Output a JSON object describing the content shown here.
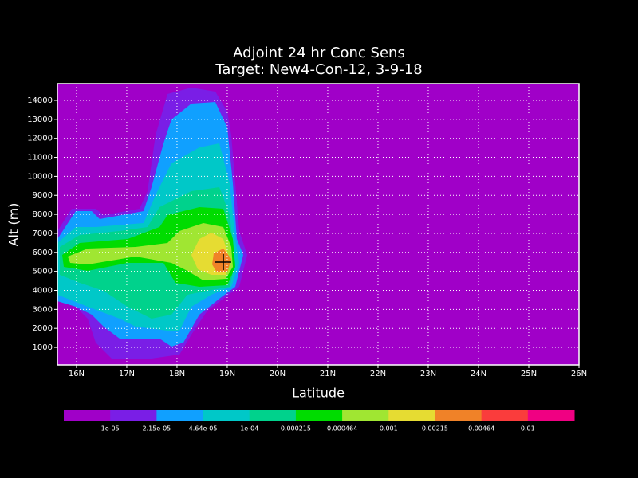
{
  "chart_data": {
    "type": "contour",
    "title": "Adjoint 24 hr Conc Sens",
    "subtitle": "Target: New4-Con-12, 3-9-18",
    "xlabel": "Latitude",
    "ylabel": "Alt (m)",
    "xlim": [
      15.62,
      26
    ],
    "xticks": [
      {
        "value": 16,
        "label": "16N"
      },
      {
        "value": 17,
        "label": "17N"
      },
      {
        "value": 18,
        "label": "18N"
      },
      {
        "value": 19,
        "label": "19N"
      },
      {
        "value": 20,
        "label": "20N"
      },
      {
        "value": 21,
        "label": "21N"
      },
      {
        "value": 22,
        "label": "22N"
      },
      {
        "value": 23,
        "label": "23N"
      },
      {
        "value": 24,
        "label": "24N"
      },
      {
        "value": 25,
        "label": "25N"
      },
      {
        "value": 26,
        "label": "26N"
      }
    ],
    "ylim": [
      80,
      14880
    ],
    "yticks": [
      1000,
      2000,
      3000,
      4000,
      5000,
      6000,
      7000,
      8000,
      9000,
      10000,
      11000,
      12000,
      13000,
      14000
    ],
    "grid": true,
    "levels": [
      {
        "value": 1e-05,
        "label": "1e-05"
      },
      {
        "value": 2.15e-05,
        "label": "2.15e-05"
      },
      {
        "value": 4.64e-05,
        "label": "4.64e-05"
      },
      {
        "value": 0.0001,
        "label": "1e-04"
      },
      0.000215,
      0.000464,
      0.001,
      0.00215,
      0.00464,
      0.01
    ],
    "colors": [
      "#a000c8",
      "#7a1ee6",
      "#10a0ff",
      "#00c8c8",
      "#00d28c",
      "#00dc00",
      "#a0e632",
      "#e6dc32",
      "#f08228",
      "#fa3c3c",
      "#f00082"
    ]
  }
}
